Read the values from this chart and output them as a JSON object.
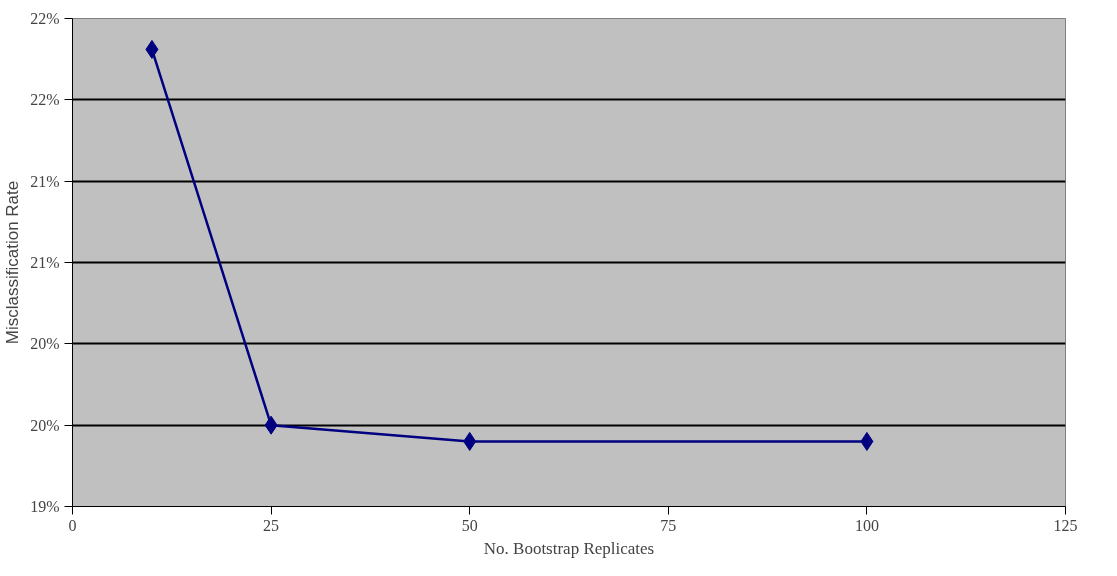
{
  "chart_data": {
    "type": "line",
    "xlabel": "No. Bootstrap Replicates",
    "ylabel": "Misclassification Rate",
    "x": [
      10,
      25,
      50,
      100
    ],
    "series": [
      {
        "color": "#000080",
        "values": [
          21.81,
          19.5,
          19.4,
          19.4
        ]
      }
    ],
    "xlim": [
      0,
      125
    ],
    "xticks": [
      0,
      25,
      50,
      75,
      100,
      125
    ],
    "ylim": [
      19,
      22
    ],
    "yticks": [
      {
        "value": 19,
        "label": "19%"
      },
      {
        "value": 19.5,
        "label": "20%"
      },
      {
        "value": 20,
        "label": "20%"
      },
      {
        "value": 20.5,
        "label": "21%"
      },
      {
        "value": 21,
        "label": "21%"
      },
      {
        "value": 21.5,
        "label": "22%"
      },
      {
        "value": 22,
        "label": "22%"
      }
    ],
    "grid": "y",
    "marker": "diamond",
    "line_style": "solid"
  }
}
